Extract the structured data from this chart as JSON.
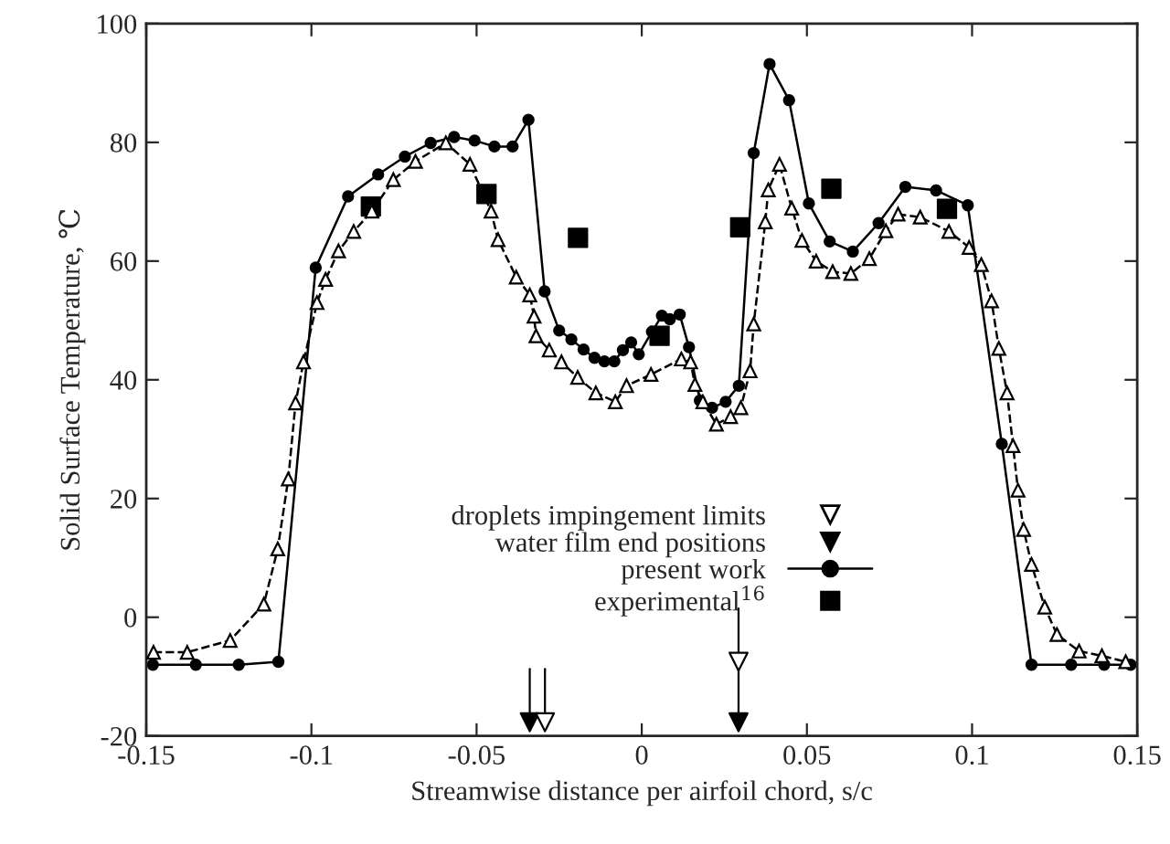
{
  "chart_data": {
    "type": "line",
    "xlabel": "Streamwise distance per airfoil chord, s/c",
    "ylabel": "Solid Surface Temperature, ℃",
    "xlim": [
      -0.15,
      0.15
    ],
    "ylim": [
      -20,
      100
    ],
    "xticks": [
      -0.15,
      -0.1,
      -0.05,
      0,
      0.05,
      0.1,
      0.15
    ],
    "yticks": [
      -20,
      0,
      20,
      40,
      60,
      80,
      100
    ],
    "grid": false,
    "legend": "bottom",
    "series": [
      {
        "type": "scatter",
        "name": "droplets impingement limits",
        "color": "#ffffff",
        "marker": "triangle",
        "x": [
          -0.0293,
          0.0293
        ],
        "values": [
          -17.7,
          -7.5
        ]
      },
      {
        "type": "scatter",
        "name": "water film end positions",
        "color": "#000000",
        "marker": "triangle",
        "x": [
          -0.0339,
          0.0293
        ],
        "values": [
          -17.7,
          -17.7
        ]
      },
      {
        "name": "present work",
        "color": "#000000",
        "marker": "circle",
        "line_style": "solid",
        "x": [
          -0.148,
          -0.135,
          -0.122,
          -0.11,
          -0.0987,
          -0.0889,
          -0.0798,
          -0.0717,
          -0.0639,
          -0.0568,
          -0.0506,
          -0.0446,
          -0.0391,
          -0.0343,
          -0.0294,
          -0.025,
          -0.0213,
          -0.0176,
          -0.0143,
          -0.0113,
          -0.0083,
          -0.0057,
          -0.0032,
          -0.0009,
          0.0031,
          0.0061,
          0.0085,
          0.0115,
          0.0143,
          0.0176,
          0.0213,
          0.0254,
          0.0294,
          0.0339,
          0.0387,
          0.0446,
          0.0506,
          0.0569,
          0.0639,
          0.0717,
          0.0798,
          0.0891,
          0.0987,
          0.109,
          0.118,
          0.13,
          0.14,
          0.148
        ],
        "values": [
          -8,
          -8,
          -8,
          -7.5,
          58.9,
          70.9,
          74.6,
          77.6,
          79.9,
          80.9,
          80.3,
          79.3,
          79.3,
          83.8,
          54.9,
          48.3,
          46.8,
          45.1,
          43.7,
          43.1,
          43.1,
          45.0,
          46.3,
          44.3,
          48.1,
          50.8,
          50.2,
          51.0,
          45.5,
          36.5,
          35.3,
          36.3,
          39.0,
          78.2,
          93.2,
          87.1,
          69.7,
          63.3,
          61.6,
          66.4,
          72.5,
          71.9,
          69.4,
          29.2,
          -8,
          -8,
          -8,
          -8
        ]
      },
      {
        "type": "scatter",
        "name": "experimental$^{16}$",
        "color": "#000000",
        "marker": "square",
        "x": [
          -0.082,
          -0.047,
          -0.0193,
          0.0054,
          0.0298,
          0.0574,
          0.0924
        ],
        "values": [
          69.2,
          71.3,
          63.9,
          47.4,
          65.7,
          72.2,
          68.8
        ]
      },
      {
        "color": "#000000",
        "marker": "triangle",
        "line_style": "dashed",
        "x": [
          -0.1478,
          -0.1376,
          -0.1246,
          -0.1144,
          -0.1102,
          -0.107,
          -0.1048,
          -0.1024,
          -0.0983,
          -0.0957,
          -0.0918,
          -0.0872,
          -0.0817,
          -0.0752,
          -0.0685,
          -0.0593,
          -0.052,
          -0.0456,
          -0.0435,
          -0.038,
          -0.0339,
          -0.0326,
          -0.032,
          -0.028,
          -0.0243,
          -0.0194,
          -0.0139,
          -0.008,
          -0.0046,
          0.0028,
          0.012,
          0.0148,
          0.0161,
          0.0185,
          0.0226,
          0.0269,
          0.03,
          0.0328,
          0.0339,
          0.0374,
          0.0383,
          0.0417,
          0.0454,
          0.0485,
          0.0528,
          0.0578,
          0.0633,
          0.0689,
          0.0739,
          0.0776,
          0.0843,
          0.093,
          0.0991,
          0.1028,
          0.1059,
          0.1081,
          0.1106,
          0.1124,
          0.1139,
          0.1156,
          0.118,
          0.122,
          0.1257,
          0.1324,
          0.1393,
          0.1465
        ],
        "values": [
          -5.9,
          -5.9,
          -3.9,
          2.2,
          11.5,
          23.3,
          36.1,
          43.0,
          53.0,
          56.9,
          61.7,
          65.0,
          68.4,
          73.7,
          76.8,
          79.9,
          76.3,
          68.4,
          63.6,
          57.3,
          54.3,
          50.7,
          47.4,
          45.0,
          43.0,
          40.4,
          37.8,
          36.3,
          39.0,
          40.9,
          43.5,
          43.0,
          39.2,
          36.3,
          32.5,
          33.8,
          35.3,
          41.5,
          49.4,
          66.6,
          72.0,
          76.3,
          68.9,
          63.5,
          60.0,
          58.2,
          57.9,
          60.4,
          65.1,
          67.9,
          67.4,
          65.0,
          62.3,
          59.4,
          53.3,
          45.3,
          37.8,
          28.9,
          21.4,
          14.8,
          8.9,
          1.7,
          -2.9,
          -5.7,
          -6.5,
          -7.5
        ]
      }
    ]
  }
}
